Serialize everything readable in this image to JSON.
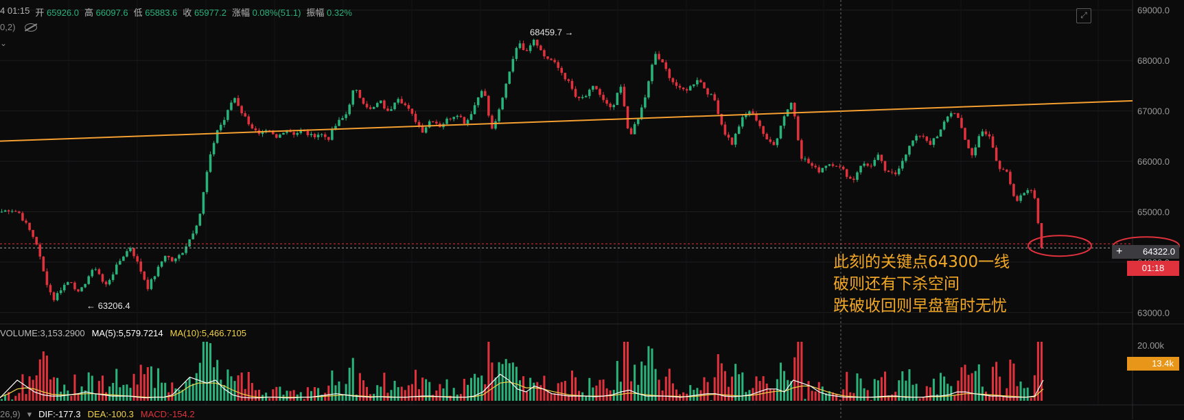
{
  "header": {
    "time": "4 01:15",
    "open_label": "开",
    "open": "65926.0",
    "high_label": "高",
    "high": "66097.6",
    "low_label": "低",
    "low": "65883.6",
    "close_label": "收",
    "close": "65977.2",
    "change_label": "涨幅",
    "change": "0.08%(51.1)",
    "amp_label": "振幅",
    "amp": "0.32%"
  },
  "sub": {
    "params": "0,2)"
  },
  "annotation": [
    "此刻的关键点64300一线",
    "破则还有下杀空间",
    "跌破收回则早盘暂时无忧"
  ],
  "volume_legend": {
    "volume": "VOLUME:3,153.2900",
    "ma5": "MA(5):5,579.7214",
    "ma10": "MA(10):5,466.7105"
  },
  "macd_legend": {
    "params": "26,9)",
    "dif": "DIF:-177.3",
    "dea": "DEA:-100.3",
    "macd": "MACD:-154.2"
  },
  "price_tag": "64322.0",
  "time_tag": "01:18",
  "volume_tag": "13.4k",
  "colors": {
    "up": "#2ab27b",
    "down": "#e0323c",
    "trend": "#f5a030",
    "ma5": "#ffffff",
    "ma10": "#f2d34a",
    "annot": "#f2a825"
  },
  "chart_data": {
    "type": "candlestick",
    "ylim": [
      62800,
      69200
    ],
    "y_ticks": [
      63000,
      64000,
      65000,
      66000,
      67000,
      68000,
      69000
    ],
    "y_tick_labels": [
      "63000.0",
      "64000.0",
      "65000.0",
      "66000.0",
      "67000.0",
      "68000.0",
      "69000.0"
    ],
    "high_annotation": {
      "value": 68459.7,
      "label": "68459.7 →"
    },
    "low_annotation": {
      "value": 63206.4,
      "label": "← 63206.4"
    },
    "current_price": 64322.0,
    "trendline": {
      "start": 66400,
      "end": 67200
    },
    "price_path": [
      65000,
      65050,
      64980,
      64700,
      64400,
      63700,
      63250,
      63500,
      63650,
      63350,
      63700,
      63900,
      63500,
      63800,
      64100,
      64300,
      63900,
      63500,
      63800,
      64150,
      64000,
      64200,
      64500,
      64900,
      65900,
      66600,
      66850,
      67300,
      66950,
      66700,
      66500,
      66600,
      66450,
      66650,
      66550,
      66600,
      66500,
      66550,
      66450,
      66750,
      66900,
      67450,
      67200,
      67000,
      67200,
      66950,
      67300,
      67100,
      66850,
      66600,
      66850,
      66700,
      66850,
      66950,
      66750,
      67100,
      67500,
      66600,
      67050,
      67750,
      68350,
      68200,
      68450,
      68100,
      68000,
      67800,
      67550,
      67200,
      67300,
      67500,
      67200,
      67000,
      67500,
      66500,
      66800,
      67350,
      68150,
      67900,
      67600,
      67400,
      67450,
      67650,
      67400,
      67200,
      66600,
      66350,
      66800,
      67000,
      66800,
      66400,
      66350,
      66900,
      67200,
      66100,
      65950,
      65800,
      65950,
      65950,
      65800,
      65600,
      65950,
      65900,
      66100,
      65750,
      65750,
      66100,
      66400,
      66550,
      66350,
      66500,
      66900,
      67000,
      66450,
      66100,
      66650,
      66450,
      65850,
      65800,
      65200,
      65350,
      65450,
      64322
    ],
    "volume_axis_label": "20.00k",
    "volume_ma5_path": [
      0.05,
      0.2,
      0.35,
      0.25,
      0.15,
      0.1,
      0.08,
      0.08,
      0.1,
      0.12,
      0.15,
      0.12,
      0.1,
      0.08,
      0.08,
      0.08,
      0.06,
      0.05,
      0.06,
      0.06,
      0.1,
      0.25,
      0.4,
      0.35,
      0.3,
      0.35,
      0.2,
      0.1,
      0.06,
      0.05,
      0.05,
      0.06,
      0.06,
      0.05,
      0.05,
      0.06,
      0.06,
      0.08,
      0.1,
      0.12,
      0.1,
      0.08,
      0.07,
      0.06,
      0.07,
      0.06,
      0.06,
      0.06,
      0.07,
      0.08,
      0.08,
      0.07,
      0.06,
      0.06,
      0.06,
      0.08,
      0.15,
      0.3,
      0.45,
      0.35,
      0.2,
      0.15,
      0.25,
      0.2,
      0.12,
      0.1,
      0.08,
      0.08,
      0.08,
      0.07,
      0.08,
      0.1,
      0.15,
      0.18,
      0.12,
      0.08,
      0.08,
      0.08,
      0.07,
      0.06,
      0.08,
      0.1,
      0.12,
      0.12,
      0.08,
      0.07,
      0.08,
      0.1,
      0.15,
      0.2,
      0.2,
      0.15,
      0.35,
      0.3,
      0.25,
      0.15,
      0.1,
      0.08,
      0.06,
      0.06,
      0.06,
      0.06,
      0.07,
      0.08,
      0.08,
      0.06,
      0.06,
      0.06,
      0.08,
      0.08,
      0.1,
      0.15,
      0.15,
      0.12,
      0.1,
      0.08,
      0.08,
      0.06,
      0.06,
      0.06,
      0.08,
      0.35
    ],
    "volume_ma10_path": [
      0.06,
      0.12,
      0.2,
      0.22,
      0.2,
      0.15,
      0.11,
      0.1,
      0.1,
      0.11,
      0.12,
      0.12,
      0.11,
      0.1,
      0.09,
      0.08,
      0.07,
      0.06,
      0.06,
      0.06,
      0.08,
      0.15,
      0.25,
      0.3,
      0.3,
      0.3,
      0.25,
      0.18,
      0.12,
      0.08,
      0.06,
      0.06,
      0.06,
      0.06,
      0.06,
      0.06,
      0.06,
      0.07,
      0.08,
      0.09,
      0.1,
      0.09,
      0.08,
      0.07,
      0.07,
      0.07,
      0.06,
      0.06,
      0.07,
      0.07,
      0.07,
      0.07,
      0.07,
      0.06,
      0.06,
      0.07,
      0.1,
      0.2,
      0.3,
      0.32,
      0.28,
      0.22,
      0.22,
      0.2,
      0.16,
      0.13,
      0.1,
      0.09,
      0.08,
      0.08,
      0.08,
      0.09,
      0.11,
      0.13,
      0.12,
      0.1,
      0.09,
      0.08,
      0.08,
      0.07,
      0.07,
      0.08,
      0.1,
      0.11,
      0.1,
      0.09,
      0.08,
      0.09,
      0.11,
      0.14,
      0.16,
      0.16,
      0.22,
      0.25,
      0.25,
      0.2,
      0.15,
      0.11,
      0.08,
      0.07,
      0.06,
      0.06,
      0.06,
      0.07,
      0.07,
      0.07,
      0.06,
      0.06,
      0.07,
      0.07,
      0.08,
      0.1,
      0.12,
      0.12,
      0.11,
      0.1,
      0.09,
      0.08,
      0.07,
      0.06,
      0.07,
      0.2
    ]
  }
}
